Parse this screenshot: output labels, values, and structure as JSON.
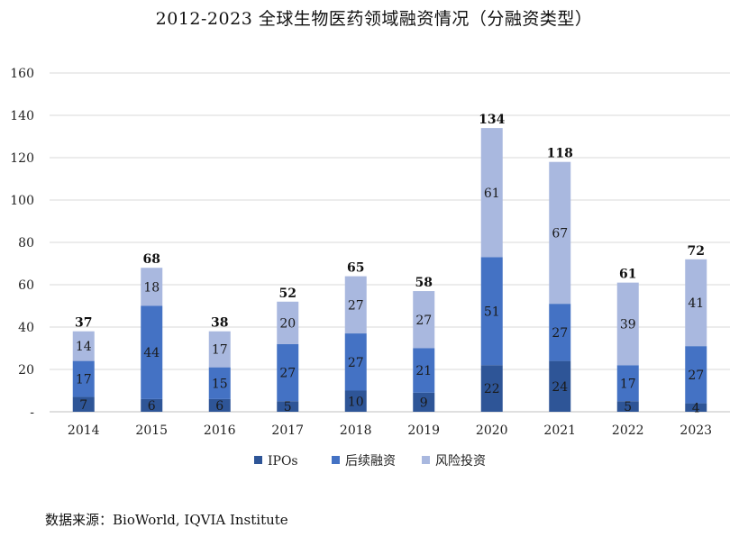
{
  "chart_data": {
    "type": "bar",
    "stacked": true,
    "title": "2012-2023 全球生物医药领域融资情况（分融资类型）",
    "categories": [
      "2014",
      "2015",
      "2016",
      "2017",
      "2018",
      "2019",
      "2020",
      "2021",
      "2022",
      "2023"
    ],
    "series": [
      {
        "name": "IPOs",
        "color": "#2e5597",
        "values": [
          7,
          6,
          6,
          5,
          10,
          9,
          22,
          24,
          5,
          4
        ]
      },
      {
        "name": "后续融资",
        "color": "#4472c4",
        "values": [
          17,
          44,
          15,
          27,
          27,
          21,
          51,
          27,
          17,
          27
        ]
      },
      {
        "name": "风险投资",
        "color": "#a9b8df",
        "values": [
          14,
          18,
          17,
          20,
          27,
          27,
          61,
          67,
          39,
          41
        ]
      }
    ],
    "totals": [
      37,
      68,
      38,
      52,
      65,
      58,
      134,
      118,
      61,
      72
    ],
    "yticks": [
      "-",
      "20",
      "40",
      "60",
      "80",
      "100",
      "120",
      "140",
      "160"
    ],
    "ylim": [
      0,
      160
    ],
    "xlabel": "",
    "ylabel": "",
    "grid": true,
    "legend_position": "bottom"
  },
  "source": "数据来源：BioWorld, IQVIA Institute"
}
